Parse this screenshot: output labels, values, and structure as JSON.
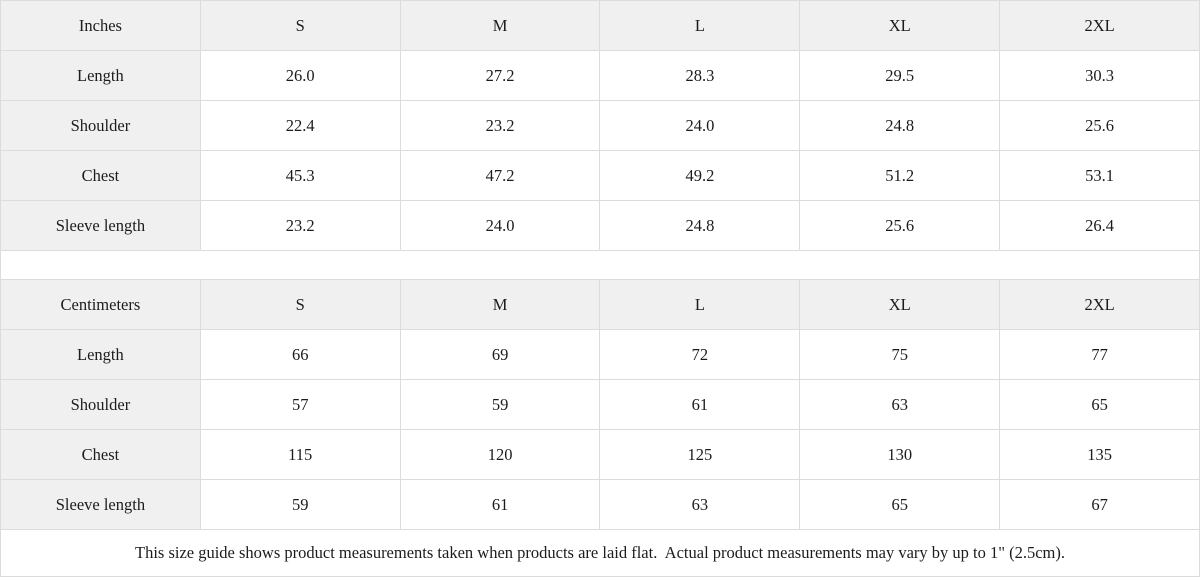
{
  "colors": {
    "header_bg": "#f0f0f0",
    "cell_bg": "#ffffff",
    "border": "#dcdcdc",
    "text": "#1c1c1c"
  },
  "size_guide": {
    "tables": [
      {
        "unit_label": "Inches",
        "sizes": [
          "S",
          "M",
          "L",
          "XL",
          "2XL"
        ],
        "rows": [
          {
            "label": "Length",
            "values": [
              "26.0",
              "27.2",
              "28.3",
              "29.5",
              "30.3"
            ]
          },
          {
            "label": "Shoulder",
            "values": [
              "22.4",
              "23.2",
              "24.0",
              "24.8",
              "25.6"
            ]
          },
          {
            "label": "Chest",
            "values": [
              "45.3",
              "47.2",
              "49.2",
              "51.2",
              "53.1"
            ]
          },
          {
            "label": "Sleeve length",
            "values": [
              "23.2",
              "24.0",
              "24.8",
              "25.6",
              "26.4"
            ]
          }
        ]
      },
      {
        "unit_label": "Centimeters",
        "sizes": [
          "S",
          "M",
          "L",
          "XL",
          "2XL"
        ],
        "rows": [
          {
            "label": "Length",
            "values": [
              "66",
              "69",
              "72",
              "75",
              "77"
            ]
          },
          {
            "label": "Shoulder",
            "values": [
              "57",
              "59",
              "61",
              "63",
              "65"
            ]
          },
          {
            "label": "Chest",
            "values": [
              "115",
              "120",
              "125",
              "130",
              "135"
            ]
          },
          {
            "label": "Sleeve length",
            "values": [
              "59",
              "61",
              "63",
              "65",
              "67"
            ]
          }
        ]
      }
    ],
    "footnote": "This size guide shows product measurements taken when products are laid flat.  Actual product measurements may vary by up to 1\" (2.5cm)."
  }
}
